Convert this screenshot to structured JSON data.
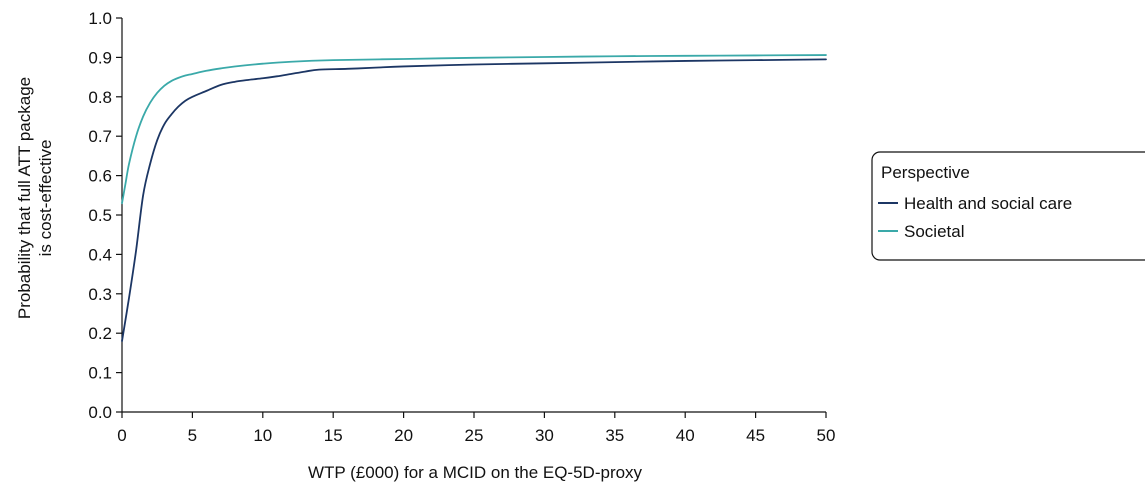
{
  "chart_data": {
    "type": "line",
    "title": "",
    "xlabel": "WTP (£000) for a MCID on the EQ-5D-proxy",
    "ylabel": [
      "Probability that full ATT package",
      "is cost-effective"
    ],
    "xlim": [
      0,
      50
    ],
    "ylim": [
      0,
      1.0
    ],
    "x_ticks": [
      0,
      5,
      10,
      15,
      20,
      25,
      30,
      35,
      40,
      45,
      50
    ],
    "y_ticks": [
      0.0,
      0.1,
      0.2,
      0.3,
      0.4,
      0.5,
      0.6,
      0.7,
      0.8,
      0.9,
      1.0
    ],
    "y_tick_labels": [
      "0.0",
      "0.1",
      "0.2",
      "0.3",
      "0.4",
      "0.5",
      "0.6",
      "0.7",
      "0.8",
      "0.9",
      "1.0"
    ],
    "grid": false,
    "legend": {
      "title": "Perspective",
      "placement": "right"
    },
    "series": [
      {
        "name": "Health and social care",
        "color": "#1c3664",
        "x": [
          0,
          0.5,
          1,
          1.5,
          2,
          2.5,
          3,
          3.5,
          4,
          4.5,
          5,
          6,
          7,
          8,
          9,
          10,
          11,
          12,
          13,
          14,
          16,
          18,
          20,
          25,
          30,
          35,
          40,
          45,
          50
        ],
        "y": [
          0.18,
          0.29,
          0.41,
          0.55,
          0.63,
          0.69,
          0.73,
          0.755,
          0.775,
          0.79,
          0.8,
          0.815,
          0.83,
          0.838,
          0.843,
          0.847,
          0.852,
          0.858,
          0.864,
          0.869,
          0.871,
          0.874,
          0.877,
          0.882,
          0.885,
          0.888,
          0.891,
          0.893,
          0.895
        ]
      },
      {
        "name": "Societal",
        "color": "#3aa9a9",
        "x": [
          0,
          0.25,
          0.5,
          1,
          1.5,
          2,
          2.5,
          3,
          3.5,
          4,
          4.5,
          5,
          6,
          7,
          8,
          10,
          12,
          15,
          20,
          25,
          30,
          35,
          40,
          45,
          50
        ],
        "y": [
          0.53,
          0.58,
          0.63,
          0.7,
          0.75,
          0.785,
          0.81,
          0.828,
          0.84,
          0.848,
          0.854,
          0.858,
          0.866,
          0.872,
          0.877,
          0.884,
          0.889,
          0.893,
          0.896,
          0.899,
          0.901,
          0.903,
          0.904,
          0.905,
          0.906
        ]
      }
    ]
  }
}
